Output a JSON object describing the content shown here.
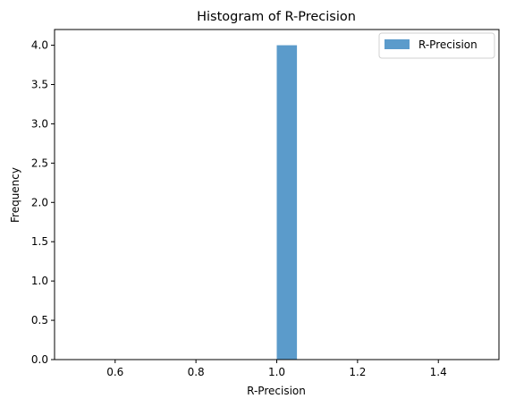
{
  "chart_data": {
    "type": "bar",
    "title": "Histogram of R-Precision",
    "xlabel": "R-Precision",
    "ylabel": "Frequency",
    "xlim": [
      0.45,
      1.55
    ],
    "ylim": [
      0,
      4.2
    ],
    "xticks": [
      0.6,
      0.8,
      1.0,
      1.2,
      1.4
    ],
    "xtick_labels": [
      "0.6",
      "0.8",
      "1.0",
      "1.2",
      "1.4"
    ],
    "yticks": [
      0.0,
      0.5,
      1.0,
      1.5,
      2.0,
      2.5,
      3.0,
      3.5,
      4.0
    ],
    "ytick_labels": [
      "0.0",
      "0.5",
      "1.0",
      "1.5",
      "2.0",
      "2.5",
      "3.0",
      "3.5",
      "4.0"
    ],
    "bins": [
      {
        "x0": 1.0,
        "x1": 1.05,
        "count": 4
      }
    ],
    "series": [
      {
        "name": "R-Precision",
        "color": "#5b9bcb"
      }
    ],
    "legend": {
      "position": "top-right"
    },
    "grid": false
  }
}
